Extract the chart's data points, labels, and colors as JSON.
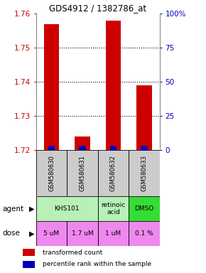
{
  "title": "GDS4912 / 1382786_at",
  "samples": [
    "GSM580630",
    "GSM580631",
    "GSM580632",
    "GSM580633"
  ],
  "red_values": [
    1.757,
    1.724,
    1.758,
    1.739
  ],
  "y_min": 1.72,
  "y_max": 1.76,
  "y_ticks_left": [
    1.72,
    1.73,
    1.74,
    1.75,
    1.76
  ],
  "y_ticks_right": [
    0,
    25,
    50,
    75,
    100
  ],
  "agent_info": [
    [
      0,
      2,
      "KHS101",
      "#b8f0b8"
    ],
    [
      2,
      1,
      "retinoic\nacid",
      "#b8f0b8"
    ],
    [
      3,
      1,
      "DMSO",
      "#33dd33"
    ]
  ],
  "doses": [
    "5 uM",
    "1.7 uM",
    "1 uM",
    "0.1 %"
  ],
  "dose_color": "#ee88ee",
  "bar_width": 0.5,
  "red_color": "#cc0000",
  "blue_color": "#0000bb",
  "left_axis_color": "#cc0000",
  "right_axis_color": "#0000bb",
  "sample_bg": "#cccccc",
  "legend_red_label": "transformed count",
  "legend_blue_label": "percentile rank within the sample"
}
